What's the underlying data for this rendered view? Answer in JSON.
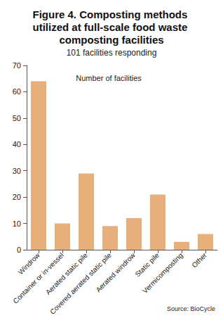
{
  "chart_data": {
    "type": "bar",
    "title": "Figure 4. Composting methods utilized at full-scale food waste composting facilities",
    "subtitle": "101 facilities responding",
    "ylabel": "Number of facilities",
    "source": "Source: BioCycle",
    "categories": [
      "Windrow",
      "Container or in-vessel",
      "Aerated static pile",
      "Covered aerated static pile",
      "Aerated windrow",
      "Static pile",
      "Vermicomposting",
      "Other"
    ],
    "values": [
      64,
      10,
      29,
      9,
      12,
      21,
      3,
      6
    ],
    "color": "#e8b07c",
    "ylim": [
      0,
      70
    ],
    "yticks": [
      0,
      10,
      20,
      30,
      40,
      50,
      60,
      70
    ],
    "grid": false
  }
}
